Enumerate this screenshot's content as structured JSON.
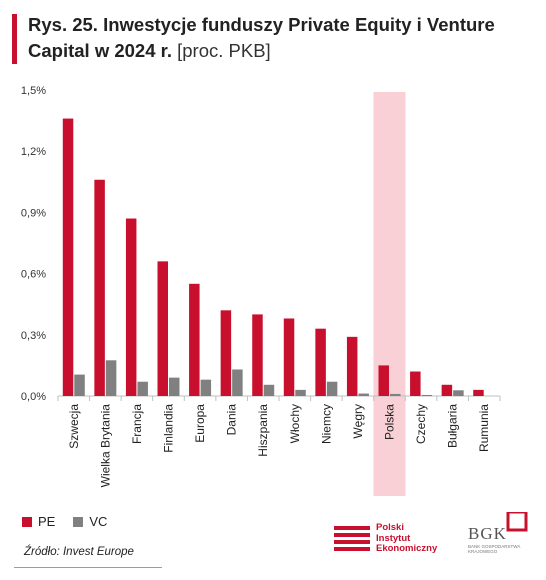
{
  "header": {
    "title_bold": "Rys. 25. Inwestycje funduszy Private Equity i Venture Capital w 2024 r.",
    "title_unit": "[proc. PKB]"
  },
  "legend": {
    "pe_label": "PE",
    "vc_label": "VC"
  },
  "footer": {
    "source": "Źródło: Invest Europe",
    "pie_logo_text": [
      "Polski",
      "Instytut",
      "Ekonomiczny"
    ],
    "bgk_logo_text": "BGK",
    "bgk_logo_sub": "BANK GOSPODARSTWA KRAJOWEGO"
  },
  "colors": {
    "pe": "#c8102e",
    "vc": "#808080",
    "highlight": "#f8d0d6",
    "accent": "#c8102e"
  },
  "chart_data": {
    "type": "bar",
    "categories": [
      "Szwecja",
      "Wielka Brytania",
      "Francja",
      "Finlandia",
      "Europa",
      "Dania",
      "Hiszpania",
      "Włochy",
      "Niemcy",
      "Węgry",
      "Polska",
      "Czechy",
      "Bułgaria",
      "Rumunia"
    ],
    "series": [
      {
        "name": "PE",
        "values": [
          1.36,
          1.06,
          0.87,
          0.66,
          0.55,
          0.42,
          0.4,
          0.38,
          0.33,
          0.29,
          0.15,
          0.12,
          0.055,
          0.03
        ]
      },
      {
        "name": "VC",
        "values": [
          0.105,
          0.175,
          0.07,
          0.09,
          0.08,
          0.13,
          0.055,
          0.03,
          0.07,
          0.012,
          0.01,
          0.005,
          0.028,
          0.0
        ]
      }
    ],
    "ylim": [
      0,
      1.5
    ],
    "yticks": [
      "0,0%",
      "0,3%",
      "0,6%",
      "0,9%",
      "1,2%",
      "1,5%"
    ],
    "highlight_category": "Polska",
    "grid": false,
    "legend_position": "bottom-left"
  }
}
